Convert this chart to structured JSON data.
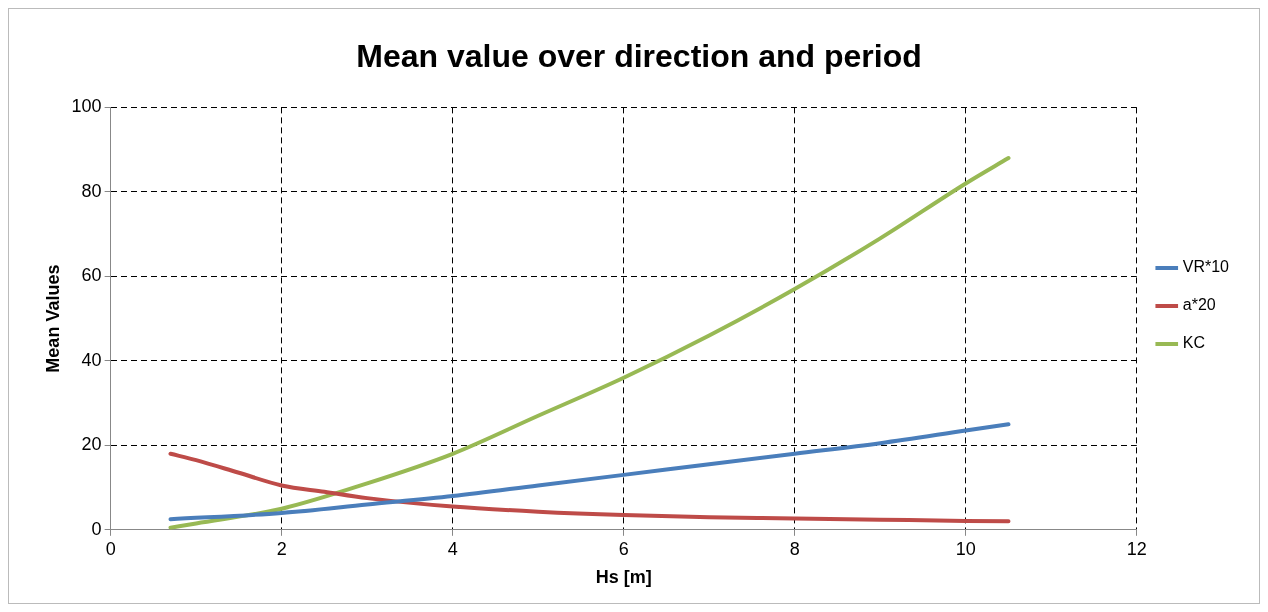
{
  "chart_data": {
    "type": "line",
    "title": "Mean value over direction and period",
    "xlabel": "Hs [m]",
    "ylabel": "Mean Values",
    "xlim": [
      0,
      12
    ],
    "xticks": [
      0,
      2,
      4,
      6,
      8,
      10,
      12
    ],
    "ylim": [
      0,
      100
    ],
    "yticks": [
      0,
      20,
      40,
      60,
      80,
      100
    ],
    "grid": true,
    "legend": "right",
    "marker": "none",
    "line_style": "solid",
    "series": [
      {
        "name": "VR*10",
        "color": "#4a7ebb",
        "x": [
          0.7,
          2,
          3,
          4,
          5,
          6,
          7,
          8,
          9,
          10,
          10.5
        ],
        "values": [
          2.5,
          4,
          6,
          8,
          10.5,
          13,
          15.5,
          18,
          20.5,
          23.5,
          25
        ]
      },
      {
        "name": "a*20",
        "color": "#be4b48",
        "x": [
          0.7,
          1,
          1.5,
          2,
          2.5,
          3,
          4,
          5,
          6,
          7,
          8,
          9,
          10,
          10.5
        ],
        "values": [
          18,
          16.5,
          13.5,
          10.5,
          9,
          7.5,
          5.5,
          4.3,
          3.5,
          3,
          2.7,
          2.4,
          2.1,
          2
        ]
      },
      {
        "name": "KC",
        "color": "#98b954",
        "x": [
          0.7,
          1,
          2,
          3,
          4,
          5,
          6,
          7,
          8,
          9,
          10,
          10.5
        ],
        "values": [
          0.5,
          1.5,
          5,
          11,
          18,
          27,
          36,
          46,
          57,
          69,
          82,
          88
        ]
      }
    ]
  }
}
